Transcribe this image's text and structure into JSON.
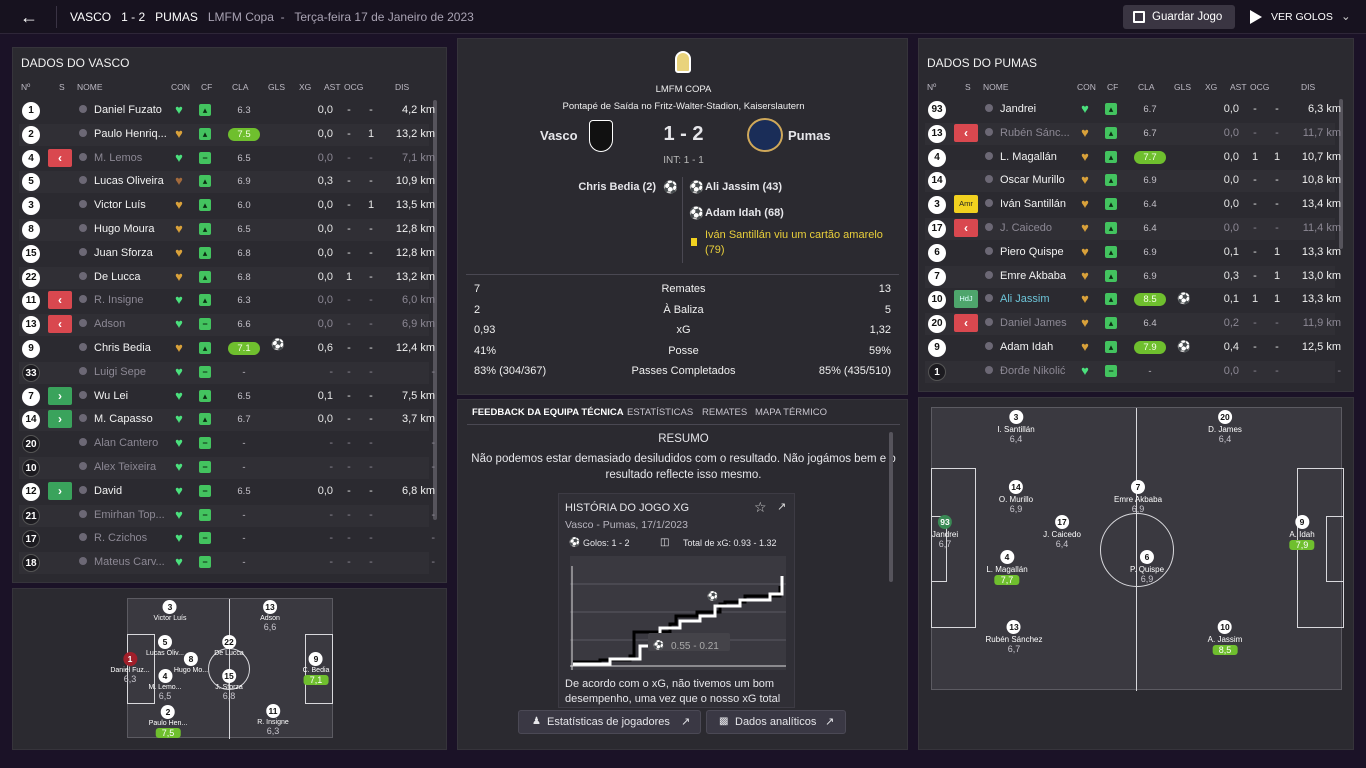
{
  "topbar": {
    "home_team": "VASCO",
    "score": "1 - 2",
    "away_team": "PUMAS",
    "competition": "LMFM Copa",
    "date": "Terça-feira 17 de Janeiro de 2023",
    "save_label": "Guardar Jogo",
    "goals_label": "VER GOLOS"
  },
  "left": {
    "title": "DADOS DO VASCO",
    "cols": {
      "no": "Nº",
      "s": "S",
      "name": "NOME",
      "con": "CON",
      "cf": "CF",
      "cla": "CLA",
      "gls": "GLS",
      "xg": "XG",
      "ast": "AST",
      "ocg": "OCG",
      "dis": "DIS"
    },
    "players": [
      {
        "no": "1",
        "name": "Daniel Fuzato",
        "cla": "6.3",
        "xg": "0,0",
        "ast": "-",
        "ocg": "-",
        "dis": "4,2 km"
      },
      {
        "no": "2",
        "name": "Paulo Henriq...",
        "cla": "7.5",
        "xg": "0,0",
        "ast": "-",
        "ocg": "1",
        "dis": "13,2 km"
      },
      {
        "no": "4",
        "sub": "<",
        "name": "M. Lemos",
        "cla": "6.5",
        "xg": "0,0",
        "ast": "-",
        "ocg": "-",
        "dis": "7,1 km"
      },
      {
        "no": "5",
        "name": "Lucas Oliveira",
        "cla": "6.9",
        "xg": "0,3",
        "ast": "-",
        "ocg": "-",
        "dis": "10,9 km"
      },
      {
        "no": "3",
        "name": "Victor Luís",
        "cla": "6.0",
        "xg": "0,0",
        "ast": "-",
        "ocg": "1",
        "dis": "13,5 km"
      },
      {
        "no": "8",
        "name": "Hugo Moura",
        "cla": "6.5",
        "xg": "0,0",
        "ast": "-",
        "ocg": "-",
        "dis": "12,8 km"
      },
      {
        "no": "15",
        "name": "Juan Sforza",
        "cla": "6.8",
        "xg": "0,0",
        "ast": "-",
        "ocg": "-",
        "dis": "12,8 km"
      },
      {
        "no": "22",
        "name": "De Lucca",
        "cla": "6.8",
        "xg": "0,0",
        "ast": "1",
        "ocg": "-",
        "dis": "13,2 km"
      },
      {
        "no": "11",
        "sub": "<",
        "name": "R. Insigne",
        "cla": "6.3",
        "xg": "0,0",
        "ast": "-",
        "ocg": "-",
        "dis": "6,0 km"
      },
      {
        "no": "13",
        "sub": "<",
        "name": "Adson",
        "cla": "6.6",
        "xg": "0,0",
        "ast": "-",
        "ocg": "-",
        "dis": "6,9 km"
      },
      {
        "no": "9",
        "name": "Chris Bedia",
        "cla": "7.1",
        "xg": "0,6",
        "ast": "-",
        "ocg": "-",
        "dis": "12,4 km"
      },
      {
        "no": "33",
        "name": "Luigi Sepe",
        "cla": "-",
        "xg": "-",
        "ast": "-",
        "ocg": "-",
        "dis": "-"
      },
      {
        "no": "7",
        "sub": ">",
        "name": "Wu Lei",
        "cla": "6.5",
        "xg": "0,1",
        "ast": "-",
        "ocg": "-",
        "dis": "7,5 km"
      },
      {
        "no": "14",
        "sub": ">",
        "name": "M. Capasso",
        "cla": "6.7",
        "xg": "0,0",
        "ast": "-",
        "ocg": "-",
        "dis": "3,7 km"
      },
      {
        "no": "20",
        "name": "Alan Cantero",
        "cla": "-",
        "xg": "-",
        "ast": "-",
        "ocg": "-",
        "dis": "-"
      },
      {
        "no": "10",
        "name": "Alex Teixeira",
        "cla": "-",
        "xg": "-",
        "ast": "-",
        "ocg": "-",
        "dis": "-"
      },
      {
        "no": "12",
        "sub": ">",
        "name": "David",
        "cla": "6.5",
        "xg": "0,0",
        "ast": "-",
        "ocg": "-",
        "dis": "6,8 km"
      },
      {
        "no": "21",
        "name": "Emirhan Top...",
        "cla": "-",
        "xg": "-",
        "ast": "-",
        "ocg": "-",
        "dis": "-"
      },
      {
        "no": "17",
        "name": "R. Czichos",
        "cla": "-",
        "xg": "-",
        "ast": "-",
        "ocg": "-",
        "dis": "-"
      },
      {
        "no": "18",
        "name": "Mateus Carv...",
        "cla": "-",
        "xg": "-",
        "ast": "-",
        "ocg": "-",
        "dis": "-"
      }
    ],
    "pitch": [
      {
        "no": "3",
        "name": "Victor Luís",
        "rating": ""
      },
      {
        "no": "13",
        "name": "Adson",
        "rating": "6,6"
      },
      {
        "no": "5",
        "name": "Lucas Oliv...",
        "rating": ""
      },
      {
        "no": "22",
        "name": "De Lucca",
        "rating": ""
      },
      {
        "no": "1",
        "name": "Daniel Fuz...",
        "rating": "6,3"
      },
      {
        "no": "8",
        "name": "Hugo Mo...",
        "rating": ""
      },
      {
        "no": "4",
        "name": "M. Lemo...",
        "rating": "6,5"
      },
      {
        "no": "15",
        "name": "J. Sforza",
        "rating": "6,8"
      },
      {
        "no": "9",
        "name": "C. Bedia",
        "rating": "7,1"
      },
      {
        "no": "2",
        "name": "Paulo Hen...",
        "rating": "7,5"
      },
      {
        "no": "11",
        "name": "R. Insigne",
        "rating": "6,3"
      }
    ]
  },
  "center": {
    "competition": "LMFM COPA",
    "venue": "Pontapé de Saída no Fritz-Walter-Stadion, Kaiserslautern",
    "home": "Vasco",
    "away": "Pumas",
    "score": "1 - 2",
    "halftime": "INT: 1 - 1",
    "home_events": [
      {
        "text": "Chris Bedia (2)"
      }
    ],
    "away_events": [
      {
        "text": "Ali Jassim (43)"
      },
      {
        "text": "Adam Idah (68)"
      },
      {
        "text": "Iván Santillán viu um cartão amarelo (79)"
      }
    ],
    "stats": [
      {
        "home": "7",
        "label": "Remates",
        "away": "13"
      },
      {
        "home": "2",
        "label": "À Baliza",
        "away": "5"
      },
      {
        "home": "0,93",
        "label": "xG",
        "away": "1,32"
      },
      {
        "home": "41%",
        "label": "Posse",
        "away": "59%"
      },
      {
        "home": "83% (304/367)",
        "label": "Passes Completados",
        "away": "85% (435/510)"
      }
    ],
    "tabs": [
      "FEEDBACK DA EQUIPA TÉCNICA",
      "ESTATÍSTICAS",
      "REMATES",
      "MAPA TÉRMICO"
    ],
    "summary_title": "RESUMO",
    "summary_text": "Não podemos estar demasiado desiludidos com o resultado. Não jogámos bem e o resultado reflecte isso mesmo.",
    "xg_card": {
      "title": "HISTÓRIA DO JOGO XG",
      "subtitle": "Vasco - Pumas, 17/1/2023",
      "goals": "Golos: 1 - 2",
      "total": "Total de xG: 0.93 - 1.32",
      "marker": "0.55 - 0.21"
    },
    "feedback_text": "De acordo com o xG, não tivemos um bom desempenho, uma vez que o nosso xG total",
    "btn_players": "Estatísticas de jogadores",
    "btn_analytics": "Dados analíticos"
  },
  "right": {
    "title": "DADOS DO PUMAS",
    "cols": {
      "no": "Nº",
      "s": "S",
      "name": "NOME",
      "con": "CON",
      "cf": "CF",
      "cla": "CLA",
      "gls": "GLS",
      "xg": "XG",
      "ast": "AST",
      "ocg": "OCG",
      "dis": "DIS"
    },
    "players": [
      {
        "no": "93",
        "name": "Jandrei",
        "cla": "6.7",
        "xg": "0,0",
        "ast": "-",
        "ocg": "-",
        "dis": "6,3 km"
      },
      {
        "no": "13",
        "sub": "<",
        "name": "Rubén Sánc...",
        "cla": "6.7",
        "xg": "0,0",
        "ast": "-",
        "ocg": "-",
        "dis": "11,7 km"
      },
      {
        "no": "4",
        "name": "L. Magallán",
        "cla": "7.7",
        "xg": "0,0",
        "ast": "1",
        "ocg": "1",
        "dis": "10,7 km"
      },
      {
        "no": "14",
        "name": "Oscar Murillo",
        "cla": "6.9",
        "xg": "0,0",
        "ast": "-",
        "ocg": "-",
        "dis": "10,8 km"
      },
      {
        "no": "3",
        "sub": "Amr",
        "name": "Iván Santillán",
        "cla": "6.4",
        "xg": "0,0",
        "ast": "-",
        "ocg": "-",
        "dis": "13,4 km"
      },
      {
        "no": "17",
        "sub": "<",
        "name": "J. Caicedo",
        "cla": "6.4",
        "xg": "0,0",
        "ast": "-",
        "ocg": "-",
        "dis": "11,4 km"
      },
      {
        "no": "6",
        "name": "Piero Quispe",
        "cla": "6.9",
        "xg": "0,1",
        "ast": "-",
        "ocg": "1",
        "dis": "13,3 km"
      },
      {
        "no": "7",
        "name": "Emre Akbaba",
        "cla": "6.9",
        "xg": "0,3",
        "ast": "-",
        "ocg": "1",
        "dis": "13,0 km"
      },
      {
        "no": "10",
        "sub": "HdJ",
        "name": "Ali Jassim",
        "cla": "8.5",
        "xg": "0,1",
        "ast": "1",
        "ocg": "1",
        "dis": "13,3 km"
      },
      {
        "no": "20",
        "sub": "<",
        "name": "Daniel James",
        "cla": "6.4",
        "xg": "0,2",
        "ast": "-",
        "ocg": "-",
        "dis": "11,9 km"
      },
      {
        "no": "9",
        "name": "Adam Idah",
        "cla": "7.9",
        "xg": "0,4",
        "ast": "-",
        "ocg": "-",
        "dis": "12,5 km"
      },
      {
        "no": "1",
        "name": "Đorđe Nikolić",
        "cla": "-",
        "xg": "0,0",
        "ast": "-",
        "ocg": "-",
        "dis": "-"
      }
    ],
    "pitch": [
      {
        "no": "3",
        "name": "I. Santillán",
        "rating": "6,4"
      },
      {
        "no": "20",
        "name": "D. James",
        "rating": "6,4"
      },
      {
        "no": "14",
        "name": "O. Murillo",
        "rating": "6,9"
      },
      {
        "no": "7",
        "name": "Emre Akbaba",
        "rating": "6,9"
      },
      {
        "no": "93",
        "name": "Jandrei",
        "rating": "6,7"
      },
      {
        "no": "17",
        "name": "J. Caicedo",
        "rating": "6,4"
      },
      {
        "no": "9",
        "name": "A. Idah",
        "rating": "7,9"
      },
      {
        "no": "4",
        "name": "L. Magallán",
        "rating": "7,7"
      },
      {
        "no": "6",
        "name": "P. Quispe",
        "rating": "6,9"
      },
      {
        "no": "13",
        "name": "Rubén Sánchez",
        "rating": "6,7"
      },
      {
        "no": "10",
        "name": "A. Jassim",
        "rating": "8,5"
      }
    ]
  }
}
